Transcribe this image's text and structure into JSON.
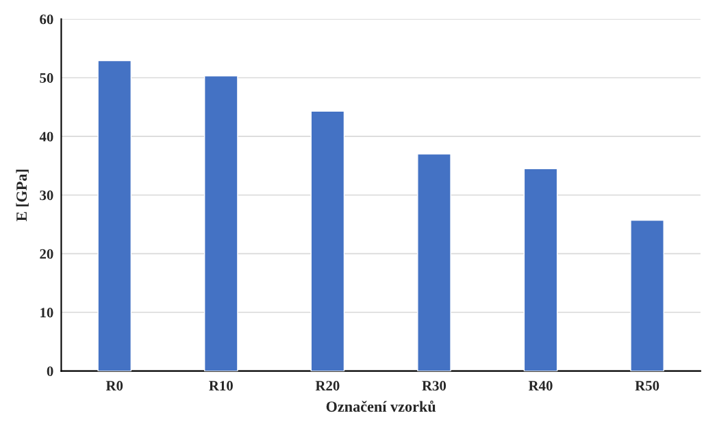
{
  "chart_data": {
    "type": "bar",
    "xlabel": "Označení vzorků",
    "ylabel": "E [GPa]",
    "categories": [
      "R0",
      "R10",
      "R20",
      "R30",
      "R40",
      "R50"
    ],
    "values": [
      52.9,
      50.3,
      44.3,
      37.0,
      34.5,
      25.7
    ],
    "color": "#4472c4",
    "ylim": [
      0,
      60
    ],
    "yticks": [
      0,
      10,
      20,
      30,
      40,
      50,
      60
    ],
    "grid": "y",
    "legend": false
  }
}
